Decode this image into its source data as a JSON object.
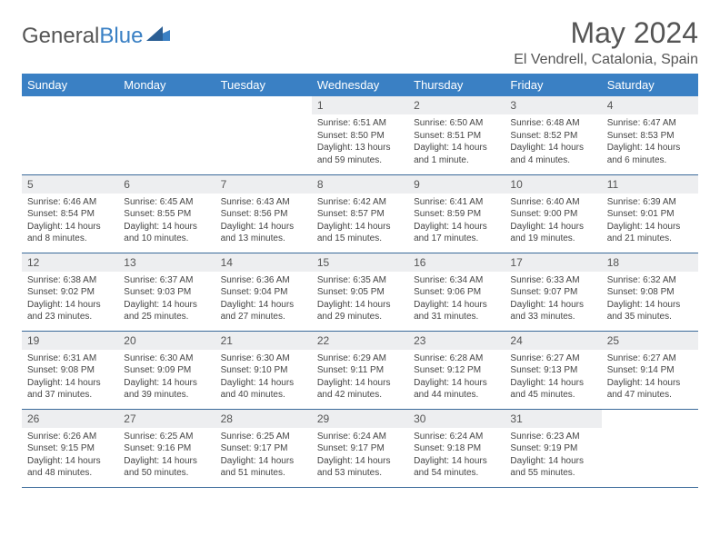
{
  "brand": {
    "part1": "General",
    "part2": "Blue"
  },
  "title": "May 2024",
  "location": "El Vendrell, Catalonia, Spain",
  "colors": {
    "header_bg": "#3a80c4",
    "header_text": "#ffffff",
    "daynum_bg": "#edeef0",
    "border": "#3a6a9a",
    "text": "#444444"
  },
  "day_names": [
    "Sunday",
    "Monday",
    "Tuesday",
    "Wednesday",
    "Thursday",
    "Friday",
    "Saturday"
  ],
  "weeks": [
    [
      {
        "n": "",
        "sr": "",
        "ss": "",
        "dl": ""
      },
      {
        "n": "",
        "sr": "",
        "ss": "",
        "dl": ""
      },
      {
        "n": "",
        "sr": "",
        "ss": "",
        "dl": ""
      },
      {
        "n": "1",
        "sr": "Sunrise: 6:51 AM",
        "ss": "Sunset: 8:50 PM",
        "dl": "Daylight: 13 hours and 59 minutes."
      },
      {
        "n": "2",
        "sr": "Sunrise: 6:50 AM",
        "ss": "Sunset: 8:51 PM",
        "dl": "Daylight: 14 hours and 1 minute."
      },
      {
        "n": "3",
        "sr": "Sunrise: 6:48 AM",
        "ss": "Sunset: 8:52 PM",
        "dl": "Daylight: 14 hours and 4 minutes."
      },
      {
        "n": "4",
        "sr": "Sunrise: 6:47 AM",
        "ss": "Sunset: 8:53 PM",
        "dl": "Daylight: 14 hours and 6 minutes."
      }
    ],
    [
      {
        "n": "5",
        "sr": "Sunrise: 6:46 AM",
        "ss": "Sunset: 8:54 PM",
        "dl": "Daylight: 14 hours and 8 minutes."
      },
      {
        "n": "6",
        "sr": "Sunrise: 6:45 AM",
        "ss": "Sunset: 8:55 PM",
        "dl": "Daylight: 14 hours and 10 minutes."
      },
      {
        "n": "7",
        "sr": "Sunrise: 6:43 AM",
        "ss": "Sunset: 8:56 PM",
        "dl": "Daylight: 14 hours and 13 minutes."
      },
      {
        "n": "8",
        "sr": "Sunrise: 6:42 AM",
        "ss": "Sunset: 8:57 PM",
        "dl": "Daylight: 14 hours and 15 minutes."
      },
      {
        "n": "9",
        "sr": "Sunrise: 6:41 AM",
        "ss": "Sunset: 8:59 PM",
        "dl": "Daylight: 14 hours and 17 minutes."
      },
      {
        "n": "10",
        "sr": "Sunrise: 6:40 AM",
        "ss": "Sunset: 9:00 PM",
        "dl": "Daylight: 14 hours and 19 minutes."
      },
      {
        "n": "11",
        "sr": "Sunrise: 6:39 AM",
        "ss": "Sunset: 9:01 PM",
        "dl": "Daylight: 14 hours and 21 minutes."
      }
    ],
    [
      {
        "n": "12",
        "sr": "Sunrise: 6:38 AM",
        "ss": "Sunset: 9:02 PM",
        "dl": "Daylight: 14 hours and 23 minutes."
      },
      {
        "n": "13",
        "sr": "Sunrise: 6:37 AM",
        "ss": "Sunset: 9:03 PM",
        "dl": "Daylight: 14 hours and 25 minutes."
      },
      {
        "n": "14",
        "sr": "Sunrise: 6:36 AM",
        "ss": "Sunset: 9:04 PM",
        "dl": "Daylight: 14 hours and 27 minutes."
      },
      {
        "n": "15",
        "sr": "Sunrise: 6:35 AM",
        "ss": "Sunset: 9:05 PM",
        "dl": "Daylight: 14 hours and 29 minutes."
      },
      {
        "n": "16",
        "sr": "Sunrise: 6:34 AM",
        "ss": "Sunset: 9:06 PM",
        "dl": "Daylight: 14 hours and 31 minutes."
      },
      {
        "n": "17",
        "sr": "Sunrise: 6:33 AM",
        "ss": "Sunset: 9:07 PM",
        "dl": "Daylight: 14 hours and 33 minutes."
      },
      {
        "n": "18",
        "sr": "Sunrise: 6:32 AM",
        "ss": "Sunset: 9:08 PM",
        "dl": "Daylight: 14 hours and 35 minutes."
      }
    ],
    [
      {
        "n": "19",
        "sr": "Sunrise: 6:31 AM",
        "ss": "Sunset: 9:08 PM",
        "dl": "Daylight: 14 hours and 37 minutes."
      },
      {
        "n": "20",
        "sr": "Sunrise: 6:30 AM",
        "ss": "Sunset: 9:09 PM",
        "dl": "Daylight: 14 hours and 39 minutes."
      },
      {
        "n": "21",
        "sr": "Sunrise: 6:30 AM",
        "ss": "Sunset: 9:10 PM",
        "dl": "Daylight: 14 hours and 40 minutes."
      },
      {
        "n": "22",
        "sr": "Sunrise: 6:29 AM",
        "ss": "Sunset: 9:11 PM",
        "dl": "Daylight: 14 hours and 42 minutes."
      },
      {
        "n": "23",
        "sr": "Sunrise: 6:28 AM",
        "ss": "Sunset: 9:12 PM",
        "dl": "Daylight: 14 hours and 44 minutes."
      },
      {
        "n": "24",
        "sr": "Sunrise: 6:27 AM",
        "ss": "Sunset: 9:13 PM",
        "dl": "Daylight: 14 hours and 45 minutes."
      },
      {
        "n": "25",
        "sr": "Sunrise: 6:27 AM",
        "ss": "Sunset: 9:14 PM",
        "dl": "Daylight: 14 hours and 47 minutes."
      }
    ],
    [
      {
        "n": "26",
        "sr": "Sunrise: 6:26 AM",
        "ss": "Sunset: 9:15 PM",
        "dl": "Daylight: 14 hours and 48 minutes."
      },
      {
        "n": "27",
        "sr": "Sunrise: 6:25 AM",
        "ss": "Sunset: 9:16 PM",
        "dl": "Daylight: 14 hours and 50 minutes."
      },
      {
        "n": "28",
        "sr": "Sunrise: 6:25 AM",
        "ss": "Sunset: 9:17 PM",
        "dl": "Daylight: 14 hours and 51 minutes."
      },
      {
        "n": "29",
        "sr": "Sunrise: 6:24 AM",
        "ss": "Sunset: 9:17 PM",
        "dl": "Daylight: 14 hours and 53 minutes."
      },
      {
        "n": "30",
        "sr": "Sunrise: 6:24 AM",
        "ss": "Sunset: 9:18 PM",
        "dl": "Daylight: 14 hours and 54 minutes."
      },
      {
        "n": "31",
        "sr": "Sunrise: 6:23 AM",
        "ss": "Sunset: 9:19 PM",
        "dl": "Daylight: 14 hours and 55 minutes."
      },
      {
        "n": "",
        "sr": "",
        "ss": "",
        "dl": ""
      }
    ]
  ]
}
